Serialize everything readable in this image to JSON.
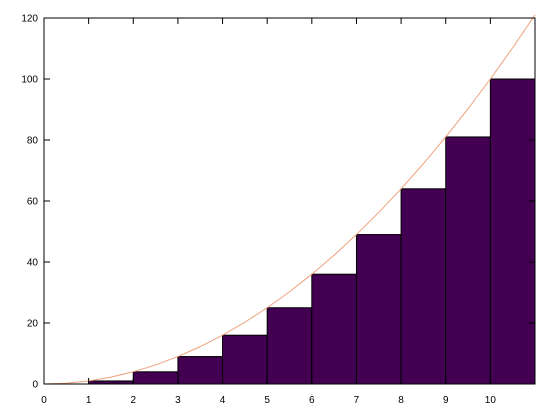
{
  "chart_data": {
    "type": "bar",
    "bars": [
      {
        "x_start": 0,
        "x_end": 1,
        "value": 0
      },
      {
        "x_start": 1,
        "x_end": 2,
        "value": 1
      },
      {
        "x_start": 2,
        "x_end": 3,
        "value": 4
      },
      {
        "x_start": 3,
        "x_end": 4,
        "value": 9
      },
      {
        "x_start": 4,
        "x_end": 5,
        "value": 16
      },
      {
        "x_start": 5,
        "x_end": 6,
        "value": 25
      },
      {
        "x_start": 6,
        "x_end": 7,
        "value": 36
      },
      {
        "x_start": 7,
        "x_end": 8,
        "value": 49
      },
      {
        "x_start": 8,
        "x_end": 9,
        "value": 64
      },
      {
        "x_start": 9,
        "x_end": 10,
        "value": 81
      },
      {
        "x_start": 10,
        "x_end": 11,
        "value": 100
      }
    ],
    "curve": {
      "type": "line",
      "x": [
        0,
        0.5,
        1,
        1.5,
        2,
        2.5,
        3,
        3.5,
        4,
        4.5,
        5,
        5.5,
        6,
        6.5,
        7,
        7.5,
        8,
        8.5,
        9,
        9.5,
        10,
        10.5,
        11
      ],
      "y": [
        0,
        0.25,
        1,
        2.25,
        4,
        6.25,
        9,
        12.25,
        16,
        20.25,
        25,
        30.25,
        36,
        42.25,
        49,
        56.25,
        64,
        72.25,
        81,
        90.25,
        100,
        110.25,
        121
      ]
    },
    "xlim": [
      0,
      11
    ],
    "ylim": [
      0,
      120
    ],
    "x_ticks": [
      "0",
      "1",
      "2",
      "3",
      "4",
      "5",
      "6",
      "7",
      "8",
      "9",
      "10"
    ],
    "y_ticks": [
      "0",
      "20",
      "40",
      "60",
      "80",
      "100",
      "120"
    ],
    "title": "",
    "xlabel": "",
    "ylabel": "",
    "grid": false,
    "legend": "none",
    "bar_color": "#430052",
    "curve_color": "#f0a07c"
  }
}
